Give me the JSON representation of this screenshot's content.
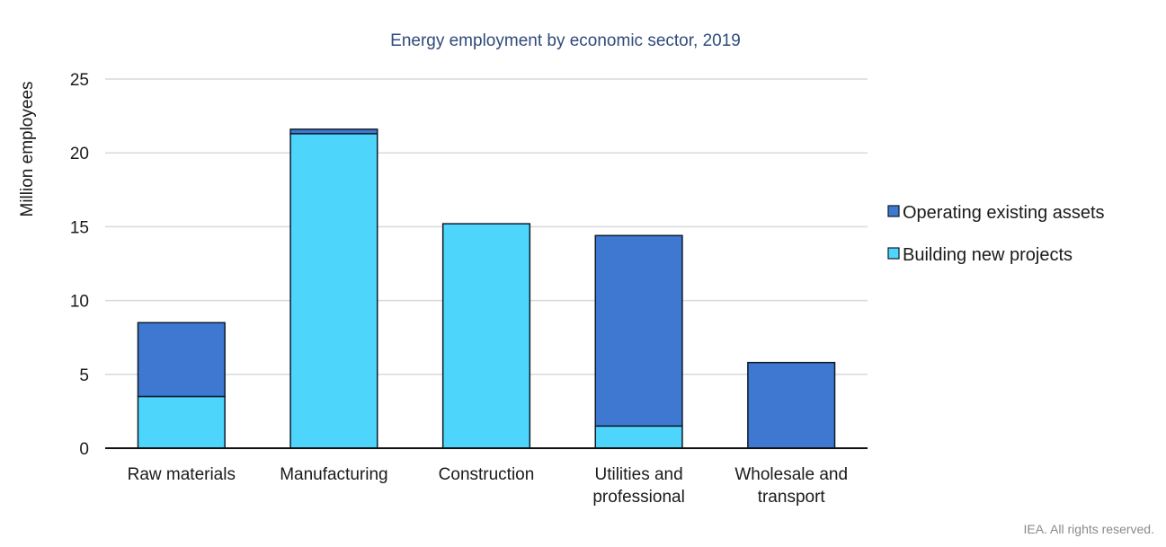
{
  "chart_data": {
    "type": "bar",
    "stacked": true,
    "title": "Energy employment by economic sector, 2019",
    "xlabel": "",
    "ylabel": "Million employees",
    "ylim": [
      0,
      25
    ],
    "yticks": [
      0,
      5,
      10,
      15,
      20,
      25
    ],
    "grid": true,
    "legend_position": "right",
    "categories": [
      [
        "Raw materials"
      ],
      [
        "Manufacturing"
      ],
      [
        "Construction"
      ],
      [
        "Utilities and",
        "professional"
      ],
      [
        "Wholesale and",
        "transport"
      ]
    ],
    "series": [
      {
        "name": "Building new projects",
        "color": "#4dd5fc",
        "values": [
          3.5,
          21.3,
          15.2,
          1.5,
          0
        ]
      },
      {
        "name": "Operating existing assets",
        "color": "#3e78d0",
        "values": [
          5.0,
          0.3,
          0,
          12.9,
          5.8
        ]
      }
    ],
    "legend": [
      "Operating existing assets",
      "Building new projects"
    ],
    "credit": "IEA. All rights reserved."
  }
}
